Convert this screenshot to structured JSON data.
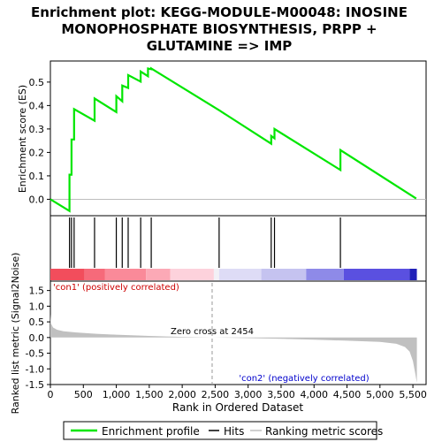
{
  "chart_data": {
    "type": "line",
    "title_lines": [
      "Enrichment plot: KEGG-MODULE-M00048: INOSINE",
      "MONOPHOSPHATE BIOSYNTHESIS, PRPP +",
      "GLUTAMINE => IMP"
    ],
    "xlabel": "Rank in Ordered Dataset",
    "xlim": [
      0,
      5700
    ],
    "x_ticks": [
      "0",
      "500",
      "1,000",
      "1,500",
      "2,000",
      "2,500",
      "3,000",
      "3,500",
      "4,000",
      "4,500",
      "5,000",
      "5,500"
    ],
    "x_tick_values": [
      0,
      500,
      1000,
      1500,
      2000,
      2500,
      3000,
      3500,
      4000,
      4500,
      5000,
      5500
    ],
    "es_panel": {
      "ylabel": "Enrichment score (ES)",
      "ylim": [
        -0.07,
        0.59
      ],
      "y_ticks": [
        "0.0",
        "0.1",
        "0.2",
        "0.3",
        "0.4",
        "0.5"
      ],
      "y_tick_values": [
        0,
        0.1,
        0.2,
        0.3,
        0.4,
        0.5
      ],
      "series": [
        {
          "name": "Enrichment profile",
          "color": "#00e600",
          "x": [
            0,
            290,
            290,
            320,
            320,
            360,
            360,
            670,
            670,
            1000,
            1000,
            1090,
            1090,
            1180,
            1180,
            1370,
            1370,
            1480,
            1480,
            1530,
            1530,
            2560,
            3350,
            3350,
            3400,
            3400,
            4400,
            4400,
            5550
          ],
          "y": [
            0,
            -0.05,
            0.105,
            0.105,
            0.255,
            0.255,
            0.385,
            0.335,
            0.43,
            0.372,
            0.44,
            0.418,
            0.485,
            0.475,
            0.53,
            0.502,
            0.545,
            0.525,
            0.558,
            0.555,
            0.558,
            0.38,
            0.237,
            0.27,
            0.26,
            0.3,
            0.125,
            0.21,
            0.003
          ]
        }
      ]
    },
    "hits_panel": {
      "hit_positions": [
        290,
        320,
        360,
        670,
        1000,
        1090,
        1180,
        1370,
        1530,
        2560,
        3350,
        3400,
        4400
      ],
      "color_band": [
        {
          "from": 0,
          "to": 520,
          "color": "#f24d5c"
        },
        {
          "from": 520,
          "to": 830,
          "color": "#f66a7a"
        },
        {
          "from": 830,
          "to": 1450,
          "color": "#fa8a99"
        },
        {
          "from": 1450,
          "to": 1820,
          "color": "#fca9b6"
        },
        {
          "from": 1820,
          "to": 2480,
          "color": "#fdd2dc"
        },
        {
          "from": 2480,
          "to": 2560,
          "color": "#f2f0f6"
        },
        {
          "from": 2560,
          "to": 3200,
          "color": "#dedcf6"
        },
        {
          "from": 3200,
          "to": 3880,
          "color": "#c5c3f0"
        },
        {
          "from": 3880,
          "to": 4450,
          "color": "#8e8ae8"
        },
        {
          "from": 4450,
          "to": 5450,
          "color": "#5a50e0"
        },
        {
          "from": 5450,
          "to": 5560,
          "color": "#2020b8"
        }
      ]
    },
    "metric_panel": {
      "ylabel": "Ranked list metric (Signal2Noise)",
      "ylim": [
        -1.5,
        1.8
      ],
      "y_ticks": [
        "1.5",
        "1.0",
        "0.5",
        "0.0",
        "-0.5",
        "-1.0",
        "-1.5"
      ],
      "y_tick_values": [
        1.5,
        1.0,
        0.5,
        0.0,
        -0.5,
        -1.0,
        -1.5
      ],
      "area_color": "#c0c0c0",
      "x": [
        0,
        10,
        40,
        100,
        200,
        400,
        700,
        1000,
        1500,
        2000,
        2454,
        3000,
        3500,
        4000,
        4500,
        5000,
        5250,
        5380,
        5450,
        5500,
        5540,
        5560
      ],
      "y": [
        0.75,
        0.45,
        0.32,
        0.25,
        0.2,
        0.16,
        0.12,
        0.09,
        0.05,
        0.02,
        0.0,
        -0.02,
        -0.04,
        -0.07,
        -0.1,
        -0.14,
        -0.2,
        -0.3,
        -0.45,
        -0.75,
        -1.2,
        -1.45
      ],
      "zero_cross_label": "Zero cross at 2454",
      "zero_cross_x": 2454,
      "pos_label": "'con1' (positively correlated)",
      "neg_label": "'con2' (negatively correlated)"
    },
    "legend": {
      "placement": "bottom",
      "entries": [
        {
          "label": "Enrichment profile",
          "color": "#00e600"
        },
        {
          "label": "Hits",
          "color": "#000000"
        },
        {
          "label": "Ranking metric scores",
          "color": "#c0c0c0"
        }
      ]
    }
  }
}
